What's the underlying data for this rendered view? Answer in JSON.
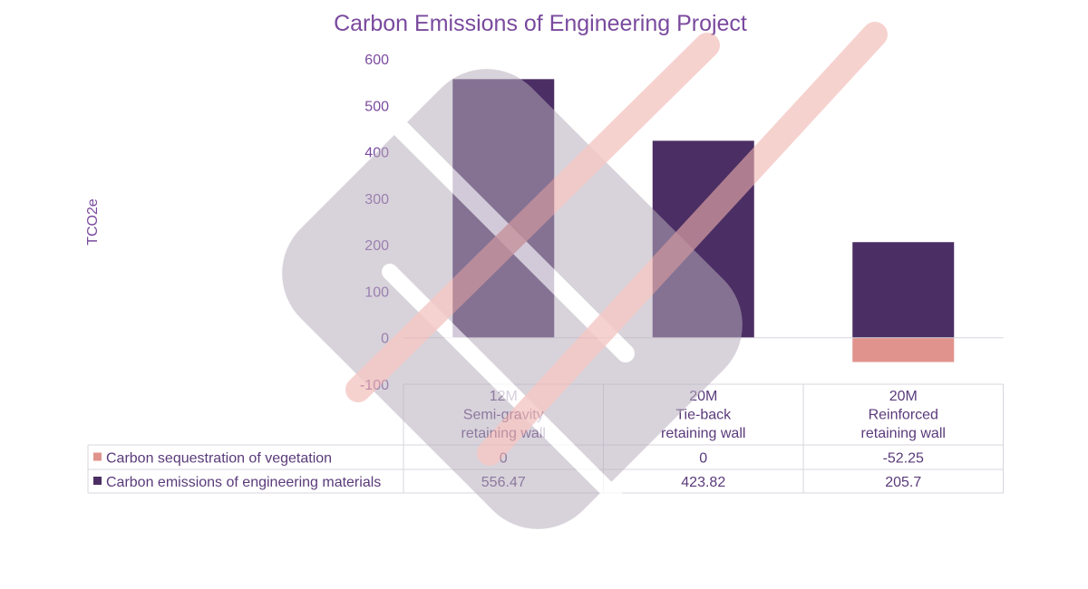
{
  "chart_data": {
    "type": "bar",
    "stacked": true,
    "title": "Carbon Emissions of Engineering Project",
    "ylabel": "TCO2e",
    "ylim": [
      -100,
      600
    ],
    "yticks": [
      -100,
      0,
      100,
      200,
      300,
      400,
      500,
      600
    ],
    "categories": [
      [
        "12M",
        "Semi-gravity",
        "retaining wall"
      ],
      [
        "20M",
        "Tie-back",
        "retaining wall"
      ],
      [
        "20M",
        "Reinforced",
        "retaining wall"
      ]
    ],
    "series": [
      {
        "name": "Carbon sequestration of vegetation",
        "color": "#e0938c",
        "values": [
          0,
          0,
          -52.25
        ],
        "labels": [
          "0",
          "0",
          "-52.25"
        ]
      },
      {
        "name": "Carbon emissions of engineering materials",
        "color": "#4b2e63",
        "values": [
          556.47,
          423.82,
          205.7
        ],
        "labels": [
          "556.47",
          "423.82",
          "205.7"
        ]
      }
    ],
    "data_table": true,
    "watermark": "diamond-logo-watermark"
  }
}
